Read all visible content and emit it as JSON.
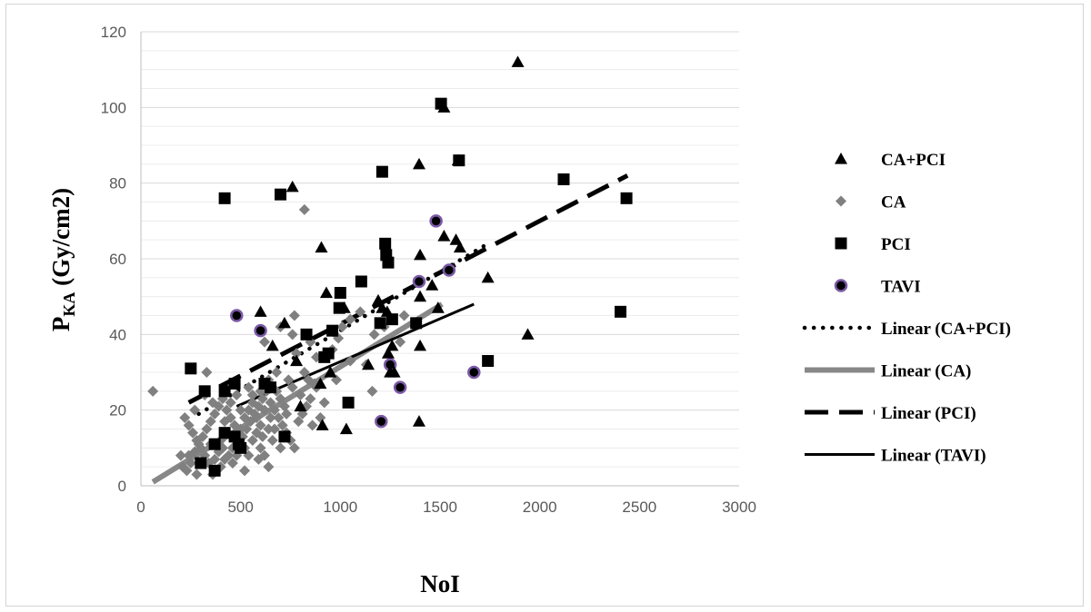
{
  "chart_data": {
    "type": "scatter",
    "xlabel": "NoI",
    "ylabel_main": "P",
    "ylabel_sub": "KA",
    "ylabel_rest": " (Gy/cm2)",
    "xlim": [
      0,
      3000
    ],
    "ylim": [
      0,
      120
    ],
    "x_ticks": [
      0,
      500,
      1000,
      1500,
      2000,
      2500,
      3000
    ],
    "y_ticks": [
      0,
      20,
      40,
      60,
      80,
      100,
      120
    ],
    "grid": true,
    "legend_position": "right",
    "series": [
      {
        "name": "CA+PCI",
        "marker": "triangle",
        "color": "#000000",
        "points": [
          [
            1890,
            112
          ],
          [
            1520,
            100
          ],
          [
            1395,
            85
          ],
          [
            760,
            79
          ],
          [
            1590,
            86
          ],
          [
            905,
            63
          ],
          [
            1400,
            61
          ],
          [
            1520,
            66
          ],
          [
            1580,
            65
          ],
          [
            1600,
            63
          ],
          [
            1740,
            55
          ],
          [
            1460,
            53
          ],
          [
            1400,
            50
          ],
          [
            930,
            51
          ],
          [
            600,
            46
          ],
          [
            720,
            43
          ],
          [
            1020,
            47
          ],
          [
            1190,
            49
          ],
          [
            1210,
            47
          ],
          [
            1235,
            46
          ],
          [
            1490,
            47
          ],
          [
            1940,
            40
          ],
          [
            1260,
            37
          ],
          [
            1400,
            37
          ],
          [
            1240,
            35
          ],
          [
            660,
            37
          ],
          [
            780,
            33
          ],
          [
            1140,
            32
          ],
          [
            1250,
            30
          ],
          [
            1270,
            30
          ],
          [
            800,
            21
          ],
          [
            910,
            16
          ],
          [
            1030,
            15
          ],
          [
            1395,
            17
          ],
          [
            900,
            27
          ],
          [
            950,
            30
          ]
        ]
      },
      {
        "name": "CA",
        "marker": "diamond",
        "color": "#808080",
        "points": [
          [
            60,
            25
          ],
          [
            820,
            73
          ],
          [
            770,
            45
          ],
          [
            700,
            42
          ],
          [
            760,
            40
          ],
          [
            620,
            38
          ],
          [
            850,
            38
          ],
          [
            1300,
            38
          ],
          [
            1130,
            32
          ],
          [
            1160,
            25
          ],
          [
            880,
            26
          ],
          [
            900,
            18
          ],
          [
            780,
            35
          ],
          [
            680,
            30
          ],
          [
            640,
            28
          ],
          [
            600,
            25
          ],
          [
            560,
            22
          ],
          [
            540,
            20
          ],
          [
            520,
            18
          ],
          [
            500,
            15
          ],
          [
            480,
            12
          ],
          [
            460,
            10
          ],
          [
            440,
            8
          ],
          [
            420,
            7
          ],
          [
            400,
            5
          ],
          [
            380,
            4
          ],
          [
            360,
            3
          ],
          [
            340,
            6
          ],
          [
            320,
            8
          ],
          [
            300,
            10
          ],
          [
            280,
            12
          ],
          [
            260,
            14
          ],
          [
            240,
            16
          ],
          [
            220,
            18
          ],
          [
            200,
            8
          ],
          [
            210,
            5
          ],
          [
            230,
            4
          ],
          [
            250,
            6
          ],
          [
            270,
            9
          ],
          [
            290,
            11
          ],
          [
            310,
            13
          ],
          [
            330,
            15
          ],
          [
            350,
            17
          ],
          [
            370,
            19
          ],
          [
            390,
            21
          ],
          [
            410,
            23
          ],
          [
            430,
            20
          ],
          [
            450,
            18
          ],
          [
            470,
            16
          ],
          [
            490,
            14
          ],
          [
            510,
            13
          ],
          [
            530,
            15
          ],
          [
            550,
            17
          ],
          [
            570,
            19
          ],
          [
            590,
            21
          ],
          [
            610,
            23
          ],
          [
            630,
            25
          ],
          [
            650,
            22
          ],
          [
            670,
            20
          ],
          [
            690,
            18
          ],
          [
            710,
            16
          ],
          [
            730,
            14
          ],
          [
            750,
            12
          ],
          [
            770,
            10
          ],
          [
            790,
            17
          ],
          [
            810,
            19
          ],
          [
            830,
            21
          ],
          [
            850,
            23
          ],
          [
            870,
            27
          ],
          [
            330,
            30
          ],
          [
            320,
            24
          ],
          [
            270,
            20
          ],
          [
            360,
            22
          ],
          [
            400,
            12
          ],
          [
            420,
            17
          ],
          [
            460,
            6
          ],
          [
            480,
            8
          ],
          [
            520,
            10
          ],
          [
            540,
            8
          ],
          [
            560,
            12
          ],
          [
            580,
            14
          ],
          [
            600,
            10
          ],
          [
            620,
            8
          ],
          [
            640,
            5
          ],
          [
            660,
            12
          ],
          [
            600,
            16
          ],
          [
            580,
            18
          ],
          [
            560,
            24
          ],
          [
            540,
            26
          ],
          [
            620,
            20
          ],
          [
            640,
            15
          ],
          [
            680,
            25
          ],
          [
            700,
            23
          ],
          [
            720,
            21
          ],
          [
            740,
            28
          ],
          [
            760,
            26
          ],
          [
            820,
            30
          ],
          [
            840,
            28
          ],
          [
            880,
            34
          ],
          [
            960,
            36
          ],
          [
            990,
            39
          ],
          [
            1010,
            42
          ],
          [
            1050,
            44
          ],
          [
            1100,
            46
          ],
          [
            500,
            20
          ],
          [
            480,
            24
          ],
          [
            450,
            22
          ],
          [
            430,
            14
          ],
          [
            410,
            10
          ],
          [
            390,
            9
          ],
          [
            370,
            7
          ],
          [
            350,
            11
          ],
          [
            300,
            6
          ],
          [
            280,
            3
          ],
          [
            240,
            8
          ],
          [
            520,
            4
          ],
          [
            590,
            7
          ],
          [
            610,
            13
          ],
          [
            650,
            18
          ],
          [
            670,
            15
          ],
          [
            700,
            10
          ],
          [
            730,
            19
          ],
          [
            800,
            24
          ],
          [
            860,
            16
          ],
          [
            920,
            22
          ],
          [
            980,
            28
          ],
          [
            1050,
            33
          ],
          [
            1170,
            40
          ],
          [
            1220,
            42
          ],
          [
            1320,
            45
          ]
        ]
      },
      {
        "name": "PCI",
        "marker": "square",
        "color": "#000000",
        "points": [
          [
            1505,
            101
          ],
          [
            1210,
            83
          ],
          [
            1595,
            86
          ],
          [
            2120,
            81
          ],
          [
            2435,
            76
          ],
          [
            420,
            76
          ],
          [
            700,
            77
          ],
          [
            1225,
            64
          ],
          [
            1230,
            61
          ],
          [
            1240,
            59
          ],
          [
            1105,
            54
          ],
          [
            1000,
            51
          ],
          [
            995,
            47
          ],
          [
            2405,
            46
          ],
          [
            1380,
            43
          ],
          [
            1200,
            43
          ],
          [
            1260,
            44
          ],
          [
            960,
            41
          ],
          [
            830,
            40
          ],
          [
            940,
            35
          ],
          [
            920,
            34
          ],
          [
            250,
            31
          ],
          [
            620,
            27
          ],
          [
            650,
            26
          ],
          [
            470,
            27
          ],
          [
            320,
            25
          ],
          [
            420,
            25
          ],
          [
            1040,
            22
          ],
          [
            1740,
            33
          ],
          [
            720,
            13
          ],
          [
            420,
            14
          ],
          [
            370,
            11
          ],
          [
            470,
            13
          ],
          [
            490,
            11
          ],
          [
            500,
            10
          ],
          [
            300,
            6
          ],
          [
            370,
            4
          ]
        ]
      },
      {
        "name": "TAVI",
        "marker": "circle",
        "color": "#000000",
        "stroke": "#7b5aa6",
        "points": [
          [
            1480,
            70
          ],
          [
            1545,
            57
          ],
          [
            1395,
            54
          ],
          [
            480,
            45
          ],
          [
            600,
            41
          ],
          [
            1250,
            32
          ],
          [
            1300,
            26
          ],
          [
            1670,
            30
          ],
          [
            1205,
            17
          ]
        ]
      }
    ],
    "trendlines": [
      {
        "name": "Linear (CA+PCI)",
        "style": "dotted",
        "color": "#000000",
        "x": [
          290,
          1740
        ],
        "y": [
          19,
          64
        ]
      },
      {
        "name": "Linear (CA)",
        "style": "solid-thick",
        "color": "#888888",
        "x": [
          60,
          1510
        ],
        "y": [
          1,
          48
        ]
      },
      {
        "name": "Linear (PCI)",
        "style": "dashed",
        "color": "#000000",
        "x": [
          240,
          2440
        ],
        "y": [
          22,
          82
        ]
      },
      {
        "name": "Linear (TAVI)",
        "style": "solid",
        "color": "#000000",
        "x": [
          480,
          1670
        ],
        "y": [
          21,
          48
        ]
      }
    ]
  }
}
